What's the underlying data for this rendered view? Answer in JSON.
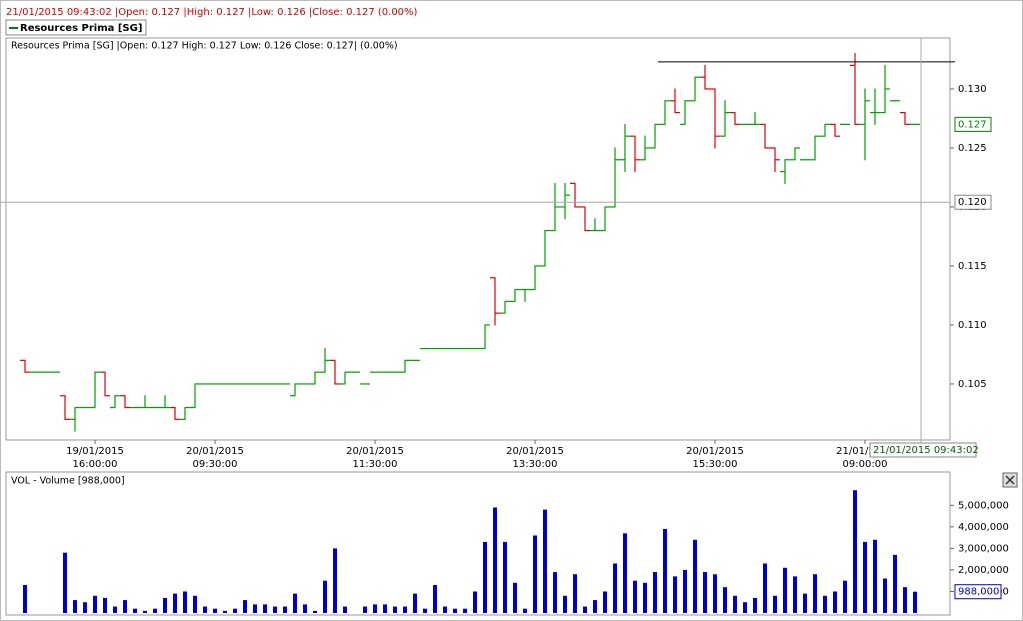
{
  "status_bar": "21/01/2015 09:43:02 |Open: 0.127 |High: 0.127 |Low: 0.126 |Close: 0.127 (0.00%)",
  "chart_data": [
    {
      "type": "ohlc",
      "title": "Resources Prima [SG] |Open: 0.127  High: 0.127  Low: 0.126  Close: 0.127| (0.00%)",
      "categories": [
        null,
        null,
        null,
        null,
        null,
        null,
        null,
        [
          "19/01/2015",
          "16:00:00"
        ],
        null,
        null,
        null,
        null,
        null,
        null,
        null,
        null,
        null,
        null,
        null,
        [
          "20/01/2015",
          "09:30:00"
        ],
        null,
        null,
        null,
        null,
        null,
        null,
        null,
        null,
        null,
        null,
        null,
        null,
        null,
        null,
        null,
        [
          "20/01/2015",
          "11:30:00"
        ],
        null,
        null,
        null,
        null,
        null,
        null,
        null,
        null,
        null,
        null,
        null,
        null,
        null,
        null,
        null,
        [
          "20/01/2015",
          "13:30:00"
        ],
        null,
        null,
        null,
        null,
        null,
        null,
        null,
        null,
        null,
        null,
        null,
        null,
        null,
        null,
        null,
        null,
        null,
        [
          "20/01/2015",
          "15:30:00"
        ],
        null,
        null,
        null,
        null,
        null,
        null,
        null,
        null,
        null,
        null,
        null,
        null,
        null,
        null,
        [
          "21/01/2015",
          "09:00:00"
        ],
        null,
        null,
        null,
        null,
        null
      ],
      "series": [
        {
          "name": "Resources Prima [SG]",
          "color": "#008000",
          "up_color": "#00a000",
          "down_color": "#e00000",
          "open": [
            0.107,
            0.106,
            0.106,
            0.106,
            0.104,
            0.102,
            0.103,
            0.103,
            0.106,
            0.103,
            0.104,
            0.103,
            0.103,
            0.103,
            0.103,
            0.103,
            0.102,
            0.103,
            0.105,
            0.105,
            0.105,
            0.105,
            0.105,
            0.105,
            0.105,
            0.105,
            0.105,
            0.104,
            0.105,
            0.105,
            0.106,
            0.107,
            0.105,
            0.106,
            0.105,
            0.106,
            0.106,
            0.106,
            0.106,
            0.107,
            0.108,
            0.108,
            0.108,
            0.108,
            0.108,
            0.108,
            0.108,
            0.114,
            0.111,
            0.112,
            0.113,
            0.113,
            0.115,
            0.118,
            0.12,
            0.122,
            0.12,
            0.118,
            0.118,
            0.12,
            0.124,
            0.126,
            0.124,
            0.125,
            0.127,
            0.129,
            0.127,
            0.129,
            0.131,
            0.13,
            0.126,
            0.128,
            0.127,
            0.127,
            0.127,
            0.125,
            0.123,
            0.124,
            0.124,
            0.124,
            0.126,
            0.127,
            0.127,
            0.132,
            0.127,
            0.128,
            0.128,
            0.129,
            0.128,
            0.127
          ],
          "high": [
            0.107,
            0.106,
            0.106,
            0.106,
            0.104,
            0.103,
            0.103,
            0.106,
            0.106,
            0.104,
            0.104,
            0.103,
            0.104,
            0.103,
            0.104,
            0.103,
            0.103,
            0.105,
            0.105,
            0.105,
            0.105,
            0.105,
            0.105,
            0.105,
            0.105,
            0.105,
            0.105,
            0.105,
            0.105,
            0.106,
            0.108,
            0.107,
            0.106,
            0.106,
            0.105,
            0.106,
            0.106,
            0.106,
            0.107,
            0.107,
            0.108,
            0.108,
            0.108,
            0.108,
            0.108,
            0.108,
            0.11,
            0.114,
            0.112,
            0.113,
            0.113,
            0.115,
            0.118,
            0.122,
            0.122,
            0.122,
            0.12,
            0.119,
            0.12,
            0.125,
            0.127,
            0.126,
            0.126,
            0.127,
            0.129,
            0.13,
            0.129,
            0.131,
            0.132,
            0.13,
            0.129,
            0.128,
            0.127,
            0.128,
            0.127,
            0.125,
            0.124,
            0.125,
            0.124,
            0.126,
            0.127,
            0.127,
            0.127,
            0.133,
            0.13,
            0.13,
            0.132,
            0.129,
            0.128,
            0.127
          ],
          "low": [
            0.106,
            0.106,
            0.106,
            0.106,
            0.102,
            0.101,
            0.103,
            0.103,
            0.104,
            0.103,
            0.103,
            0.103,
            0.103,
            0.103,
            0.103,
            0.102,
            0.102,
            0.103,
            0.105,
            0.105,
            0.105,
            0.105,
            0.105,
            0.105,
            0.105,
            0.105,
            0.105,
            0.104,
            0.105,
            0.105,
            0.106,
            0.105,
            0.105,
            0.106,
            0.105,
            0.106,
            0.106,
            0.106,
            0.106,
            0.107,
            0.108,
            0.108,
            0.108,
            0.108,
            0.108,
            0.108,
            0.108,
            0.11,
            0.111,
            0.112,
            0.112,
            0.113,
            0.115,
            0.118,
            0.119,
            0.12,
            0.118,
            0.118,
            0.118,
            0.12,
            0.123,
            0.123,
            0.124,
            0.125,
            0.127,
            0.128,
            0.127,
            0.129,
            0.13,
            0.125,
            0.126,
            0.127,
            0.127,
            0.127,
            0.125,
            0.123,
            0.122,
            0.124,
            0.124,
            0.124,
            0.126,
            0.126,
            0.127,
            0.127,
            0.124,
            0.127,
            0.128,
            0.129,
            0.127,
            0.127
          ],
          "close": [
            0.106,
            0.106,
            0.106,
            0.106,
            0.102,
            0.103,
            0.103,
            0.106,
            0.104,
            0.104,
            0.103,
            0.103,
            0.103,
            0.103,
            0.103,
            0.102,
            0.103,
            0.105,
            0.105,
            0.105,
            0.105,
            0.105,
            0.105,
            0.105,
            0.105,
            0.105,
            0.105,
            0.105,
            0.105,
            0.106,
            0.107,
            0.105,
            0.106,
            0.106,
            0.105,
            0.106,
            0.106,
            0.106,
            0.107,
            0.107,
            0.108,
            0.108,
            0.108,
            0.108,
            0.108,
            0.108,
            0.11,
            0.111,
            0.112,
            0.113,
            0.113,
            0.115,
            0.118,
            0.12,
            0.121,
            0.12,
            0.118,
            0.118,
            0.12,
            0.124,
            0.126,
            0.124,
            0.125,
            0.127,
            0.129,
            0.128,
            0.129,
            0.131,
            0.13,
            0.126,
            0.128,
            0.127,
            0.127,
            0.127,
            0.125,
            0.124,
            0.124,
            0.125,
            0.124,
            0.126,
            0.127,
            0.126,
            0.127,
            0.127,
            0.129,
            0.128,
            0.13,
            0.129,
            0.127,
            0.127
          ]
        }
      ],
      "ylim": [
        0.10025,
        0.13432
      ],
      "yticks": [
        0.105,
        {
          "value": 0.11,
          "label": "0.110"
        },
        0.115,
        {
          "value": 0.12,
          "label": "0.120"
        },
        0.125,
        {
          "value": 0.13,
          "label": "0.130"
        }
      ],
      "last_value": 0.127,
      "resistance": 0.1323,
      "crosshair": {
        "x_label": "21/01/2015 09:43:02",
        "y_value": 0.1204,
        "y_label": "0.120"
      }
    },
    {
      "type": "bar",
      "title": "VOL - Volume [988,000]",
      "color": "#0000cc",
      "values": [
        1300000,
        0,
        0,
        0,
        2800000,
        600000,
        500000,
        800000,
        700000,
        300000,
        600000,
        200000,
        100000,
        200000,
        700000,
        900000,
        1000000,
        800000,
        300000,
        200000,
        100000,
        200000,
        600000,
        400000,
        400000,
        300000,
        300000,
        900000,
        400000,
        100000,
        1500000,
        3000000,
        300000,
        0,
        300000,
        400000,
        400000,
        300000,
        300000,
        900000,
        200000,
        1300000,
        300000,
        200000,
        200000,
        1000000,
        3300000,
        4900000,
        3300000,
        1400000,
        200000,
        3600000,
        4800000,
        1900000,
        800000,
        1800000,
        300000,
        600000,
        1000000,
        2300000,
        3700000,
        1500000,
        1400000,
        1900000,
        3900000,
        1700000,
        2000000,
        3400000,
        1900000,
        1800000,
        1200000,
        800000,
        500000,
        700000,
        2300000,
        800000,
        2100000,
        1700000,
        900000,
        1800000,
        800000,
        1000000,
        1500000,
        5700000,
        3300000,
        3400000,
        1600000,
        2700000,
        1200000,
        988000
      ],
      "ylim": [
        0,
        6500000
      ],
      "yticks": [
        {
          "value": 1000000,
          "label": "1,000,000"
        },
        {
          "value": 2000000,
          "label": "2,000,000"
        },
        {
          "value": 3000000,
          "label": "3,000,000"
        },
        {
          "value": 4000000,
          "label": "4,000,000"
        },
        {
          "value": 5000000,
          "label": "5,000,000"
        }
      ],
      "last_value": 988000,
      "last_value_label": "988,000"
    }
  ]
}
